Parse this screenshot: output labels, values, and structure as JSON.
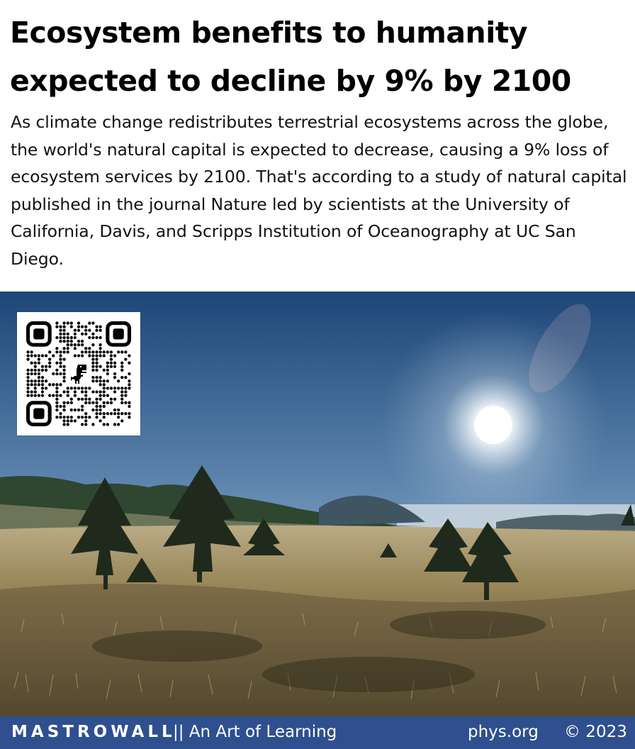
{
  "headline": "Ecosystem benefits to humanity expected to decline by 9% by 2100",
  "summary": "As climate change redistributes terrestrial ecosystems across the globe, the world's natural capital is expected to decrease, causing a 9% loss of ecosystem services by 2100. That's according to a study of natural capital published in the journal Nature led by scientists at the University of California, Davis, and Scripps Institution of Oceanography at UC San Diego.",
  "photo": {
    "scene": "grassland-with-pine-trees-and-sun"
  },
  "qr_code": {
    "icon": "dinosaur-icon"
  },
  "footer": {
    "brand": "MASTROWALL",
    "tagline": " || An Art of Learning",
    "source": "phys.org",
    "copyright": "© 2023"
  },
  "colors": {
    "footer_bg": "#2f4f8f",
    "sky_top": "#1f4b7e",
    "grass": "#a48f62"
  }
}
